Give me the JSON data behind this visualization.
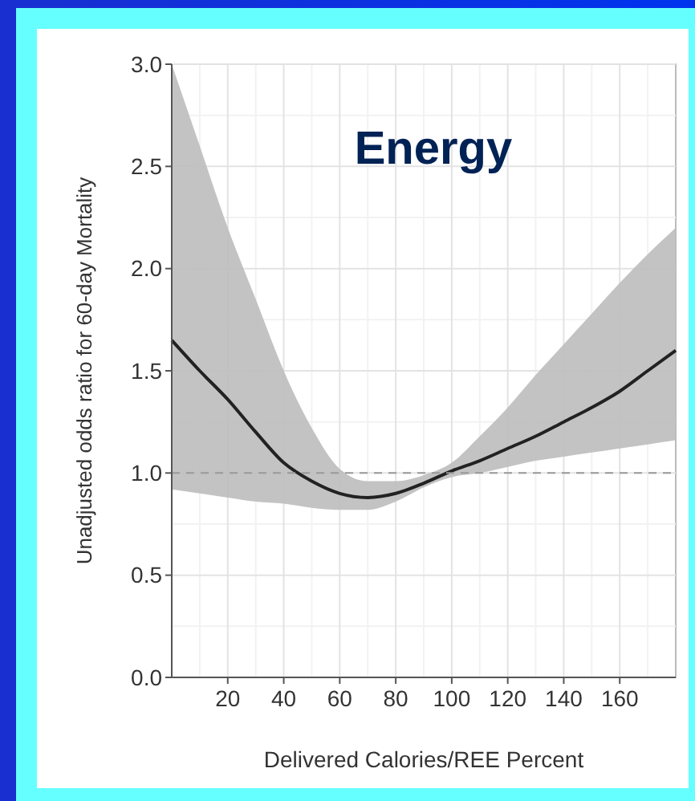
{
  "chart_data": {
    "type": "line",
    "title": "Energy",
    "xlabel": "Delivered Calories/REE Percent",
    "ylabel": "Unadjusted odds ratio for 60-day Mortality",
    "x": [
      0,
      10,
      20,
      30,
      40,
      50,
      60,
      70,
      80,
      90,
      100,
      110,
      120,
      130,
      140,
      150,
      160,
      170,
      180
    ],
    "series": [
      {
        "color": "#222222",
        "values": [
          1.65,
          1.5,
          1.36,
          1.2,
          1.05,
          0.96,
          0.9,
          0.88,
          0.9,
          0.95,
          1.01,
          1.06,
          1.12,
          1.18,
          1.25,
          1.32,
          1.4,
          1.5,
          1.6
        ],
        "upper": [
          3.0,
          2.6,
          2.2,
          1.85,
          1.5,
          1.22,
          1.02,
          0.96,
          0.96,
          0.99,
          1.05,
          1.18,
          1.32,
          1.48,
          1.63,
          1.78,
          1.93,
          2.07,
          2.2
        ],
        "lower": [
          0.92,
          0.9,
          0.88,
          0.86,
          0.85,
          0.83,
          0.82,
          0.82,
          0.86,
          0.93,
          0.98,
          1.0,
          1.03,
          1.06,
          1.08,
          1.1,
          1.12,
          1.14,
          1.16
        ]
      }
    ],
    "xlim": [
      0,
      180
    ],
    "xticks": [
      20,
      40,
      60,
      80,
      100,
      120,
      140,
      160
    ],
    "ylim": [
      0,
      3
    ],
    "yticks": [
      {
        "value": 0,
        "label": "0.0"
      },
      0.5,
      {
        "value": 1,
        "label": "1.0"
      },
      1.5,
      {
        "value": 2,
        "label": "2.0"
      },
      2.5,
      {
        "value": 3,
        "label": "3.0"
      }
    ],
    "ref_lines": [
      {
        "axis": "y",
        "value": 1,
        "color": "#999999",
        "line_style": "dashed"
      }
    ],
    "grid": true,
    "line_style": "solid",
    "marker": "none"
  }
}
